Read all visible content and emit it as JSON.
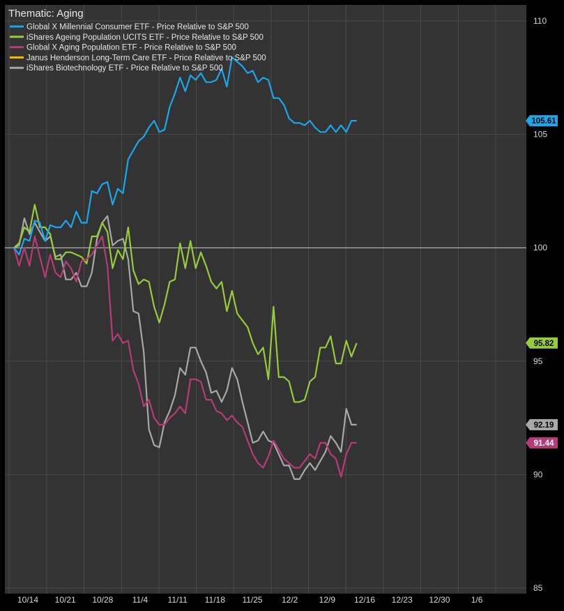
{
  "chart_data": {
    "type": "line",
    "title": "Thematic: Aging",
    "xlabel": "",
    "ylabel": "",
    "ylim": [
      85,
      110
    ],
    "y_ticks": [
      85,
      90,
      95,
      100,
      105,
      110
    ],
    "x_ticks": [
      "10/14",
      "10/21",
      "10/28",
      "11/4",
      "11/11",
      "11/18",
      "11/25",
      "12/2",
      "12/9",
      "12/16",
      "12/23",
      "12/30",
      "1/6"
    ],
    "grid": true,
    "baseline": 100,
    "legend_position": "top-left",
    "series": [
      {
        "name": "Global X Millennial Consumer ETF - Price Relative to S&P 500",
        "color": "#1aa7ec",
        "end_label": "105.61",
        "values": [
          100.0,
          99.7,
          100.4,
          100.3,
          101.2,
          101.1,
          100.3,
          101.0,
          100.9,
          100.9,
          101.2,
          100.9,
          101.6,
          101.1,
          101.1,
          102.5,
          102.4,
          102.8,
          102.9,
          101.9,
          102.6,
          102.4,
          103.9,
          104.3,
          104.7,
          104.9,
          105.3,
          105.6,
          105.1,
          105.2,
          106.2,
          106.8,
          107.5,
          106.9,
          107.6,
          107.4,
          107.7,
          107.3,
          107.3,
          107.4,
          107.9,
          107.1,
          108.4,
          108.2,
          108.0,
          107.7,
          107.8,
          107.3,
          107.5,
          107.4,
          106.6,
          106.6,
          106.3,
          105.7,
          105.5,
          105.5,
          105.4,
          105.6,
          105.3,
          105.1,
          105.1,
          105.4,
          105.1,
          105.4,
          105.1,
          105.6,
          105.6
        ]
      },
      {
        "name": "iShares Ageing Population UCITS ETF - Price Relative to S&P 500",
        "color": "#97cc3a",
        "end_label": "95.82",
        "values": [
          100.0,
          100.2,
          100.9,
          100.7,
          101.9,
          100.9,
          100.9,
          100.6,
          99.5,
          99.5,
          99.8,
          99.8,
          99.7,
          99.6,
          99.3,
          100.5,
          100.5,
          101.1,
          100.7,
          99.1,
          99.9,
          99.5,
          100.9,
          99.0,
          98.4,
          98.6,
          98.5,
          97.4,
          96.7,
          97.5,
          98.5,
          98.6,
          100.2,
          99.1,
          100.3,
          99.1,
          99.8,
          99.2,
          98.5,
          98.2,
          98.5,
          97.2,
          98.1,
          97.1,
          96.8,
          96.5,
          95.8,
          95.3,
          95.6,
          94.2,
          97.4,
          94.3,
          94.3,
          94.1,
          93.2,
          93.2,
          93.3,
          94.1,
          94.3,
          95.6,
          95.6,
          96.1,
          94.9,
          94.9,
          95.9,
          95.2,
          95.8
        ]
      },
      {
        "name": "Global X Aging Population ETF - Price Relative to S&P 500",
        "color": "#b63b78",
        "end_label": "91.44",
        "values": [
          100.0,
          99.2,
          100.0,
          99.2,
          100.5,
          99.6,
          98.7,
          99.7,
          98.9,
          98.7,
          99.4,
          99.1,
          98.5,
          99.4,
          99.5,
          99.7,
          100.1,
          100.5,
          99.2,
          95.9,
          96.2,
          95.8,
          95.9,
          94.6,
          94.0,
          93.0,
          93.3,
          92.5,
          92.2,
          92.2,
          92.5,
          92.7,
          93.0,
          92.7,
          94.2,
          94.2,
          94.1,
          93.3,
          93.3,
          92.8,
          92.7,
          92.4,
          92.6,
          92.3,
          92.1,
          91.5,
          90.9,
          90.5,
          90.3,
          90.8,
          91.5,
          91.1,
          90.7,
          90.5,
          90.3,
          90.3,
          90.6,
          90.9,
          90.7,
          91.4,
          91.4,
          90.9,
          90.7,
          89.9,
          90.9,
          91.4,
          91.4
        ]
      },
      {
        "name": "Janus Henderson Long-Term Care ETF - Price Relative to S&P 500",
        "color": "#f2c000",
        "end_label": "",
        "values": []
      },
      {
        "name": "iShares Biotechnology ETF - Price Relative to S&P 500",
        "color": "#a8a8a8",
        "end_label": "92.19",
        "values": [
          100.0,
          100.1,
          101.3,
          100.6,
          101.1,
          100.7,
          100.3,
          100.5,
          99.6,
          99.7,
          98.6,
          98.6,
          98.9,
          98.3,
          98.3,
          98.9,
          100.4,
          101.1,
          101.4,
          100.1,
          100.3,
          100.4,
          99.5,
          97.2,
          97.1,
          95.4,
          92.0,
          91.3,
          91.2,
          92.3,
          92.8,
          93.5,
          94.7,
          94.4,
          95.6,
          95.6,
          95.0,
          94.5,
          93.6,
          93.7,
          93.2,
          93.7,
          94.7,
          94.2,
          93.2,
          92.3,
          91.4,
          91.5,
          91.9,
          91.5,
          91.4,
          90.9,
          90.4,
          90.4,
          89.8,
          89.8,
          90.2,
          90.5,
          90.2,
          90.6,
          91.0,
          91.7,
          91.4,
          91.0,
          92.9,
          92.2,
          92.2
        ]
      }
    ]
  }
}
